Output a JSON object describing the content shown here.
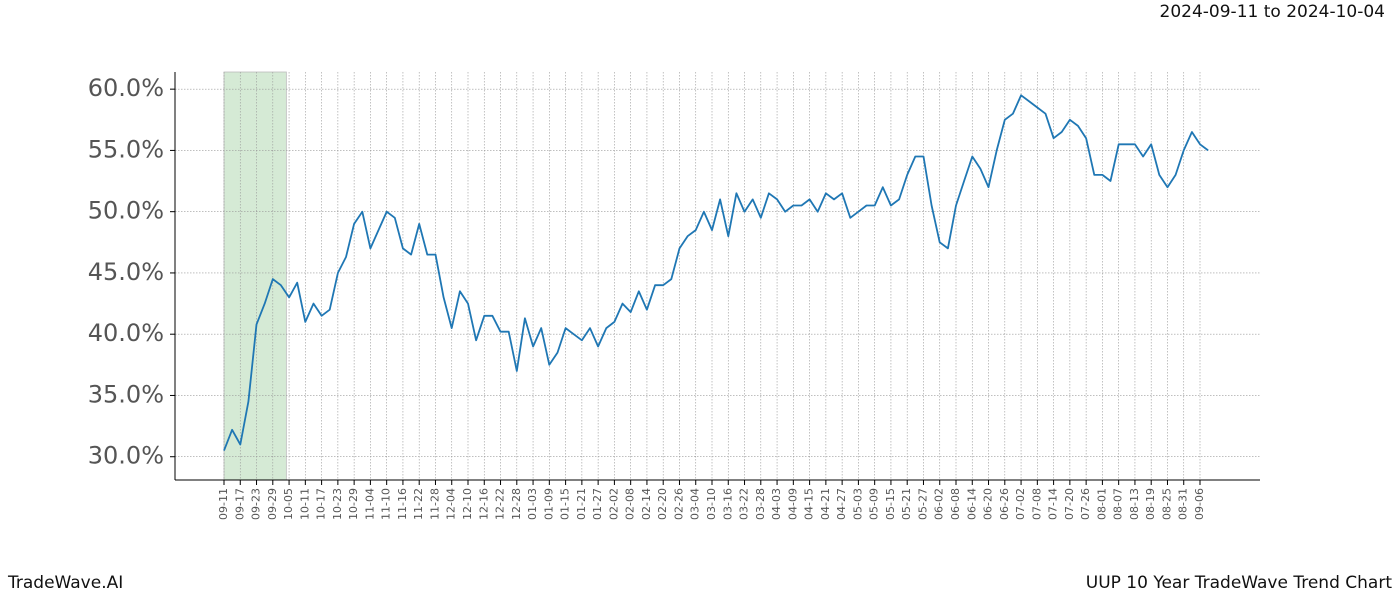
{
  "chart_data": {
    "type": "line",
    "subtitle": "2024-09-11 to 2024-10-04",
    "footer_left": "TradeWave.AI",
    "footer_right": "UUP 10 Year TradeWave Trend Chart",
    "highlight_range": [
      "09-11",
      "10-04"
    ],
    "highlight_color": "#d5ead5",
    "grid": true,
    "x": [
      "09-11",
      "09-14",
      "09-17",
      "09-20",
      "09-23",
      "09-26",
      "09-29",
      "10-02",
      "10-05",
      "10-08",
      "10-11",
      "10-14",
      "10-17",
      "10-20",
      "10-23",
      "10-26",
      "10-29",
      "11-01",
      "11-04",
      "11-07",
      "11-10",
      "11-13",
      "11-16",
      "11-19",
      "11-22",
      "11-25",
      "11-28",
      "12-01",
      "12-04",
      "12-07",
      "12-10",
      "12-13",
      "12-16",
      "12-19",
      "12-22",
      "12-25",
      "12-28",
      "12-31",
      "01-03",
      "01-06",
      "01-09",
      "01-12",
      "01-15",
      "01-18",
      "01-21",
      "01-24",
      "01-27",
      "01-30",
      "02-02",
      "02-05",
      "02-08",
      "02-11",
      "02-14",
      "02-17",
      "02-20",
      "02-23",
      "02-26",
      "03-01",
      "03-04",
      "03-07",
      "03-10",
      "03-13",
      "03-16",
      "03-19",
      "03-22",
      "03-25",
      "03-28",
      "03-31",
      "04-03",
      "04-06",
      "04-09",
      "04-12",
      "04-15",
      "04-18",
      "04-21",
      "04-24",
      "04-27",
      "04-30",
      "05-03",
      "05-06",
      "05-09",
      "05-12",
      "05-15",
      "05-18",
      "05-21",
      "05-24",
      "05-27",
      "05-30",
      "06-02",
      "06-05",
      "06-08",
      "06-11",
      "06-14",
      "06-17",
      "06-20",
      "06-23",
      "06-26",
      "06-29",
      "07-02",
      "07-05",
      "07-08",
      "07-11",
      "07-14",
      "07-17",
      "07-20",
      "07-23",
      "07-26",
      "07-29",
      "08-01",
      "08-04",
      "08-07",
      "08-10",
      "08-13",
      "08-16",
      "08-19",
      "08-22",
      "08-25",
      "08-28",
      "08-31",
      "09-03",
      "09-06",
      "09-09"
    ],
    "series": [
      {
        "name": "UUP",
        "color": "#1f77b4",
        "values": [
          30.5,
          32.2,
          31.0,
          34.5,
          40.8,
          42.5,
          44.5,
          44.0,
          43.0,
          44.2,
          41.0,
          42.5,
          41.5,
          42.0,
          45.0,
          46.3,
          49.0,
          50.0,
          47.0,
          48.5,
          50.0,
          49.5,
          47.0,
          46.5,
          49.0,
          46.5,
          46.5,
          43.0,
          40.5,
          43.5,
          42.5,
          39.5,
          41.5,
          41.5,
          40.2,
          40.2,
          37.0,
          41.3,
          39.0,
          40.5,
          37.5,
          38.5,
          40.5,
          40.0,
          39.5,
          40.5,
          39.0,
          40.5,
          41.0,
          42.5,
          41.8,
          43.5,
          42.0,
          44.0,
          44.0,
          44.5,
          47.0,
          48.0,
          48.5,
          50.0,
          48.5,
          51.0,
          48.0,
          51.5,
          50.0,
          51.0,
          49.5,
          51.5,
          51.0,
          50.0,
          50.5,
          50.5,
          51.0,
          50.0,
          51.5,
          51.0,
          51.5,
          49.5,
          50.0,
          50.5,
          50.5,
          52.0,
          50.5,
          51.0,
          53.0,
          54.5,
          54.5,
          50.5,
          47.5,
          47.0,
          50.5,
          52.5,
          54.5,
          53.5,
          52.0,
          55.0,
          57.5,
          58.0,
          59.5,
          59.0,
          58.5,
          58.0,
          56.0,
          56.5,
          57.5,
          57.0,
          56.0,
          53.0,
          53.0,
          52.5,
          55.5,
          55.5,
          55.5,
          54.5,
          55.5,
          53.0,
          52.0,
          53.0,
          55.0,
          56.5,
          55.5,
          55.0
        ]
      }
    ],
    "xticks": [
      "09-11",
      "09-17",
      "09-23",
      "09-29",
      "10-05",
      "10-11",
      "10-17",
      "10-23",
      "10-29",
      "11-04",
      "11-10",
      "11-16",
      "11-22",
      "11-28",
      "12-04",
      "12-10",
      "12-16",
      "12-22",
      "12-28",
      "01-03",
      "01-09",
      "01-15",
      "01-21",
      "01-27",
      "02-02",
      "02-08",
      "02-14",
      "02-20",
      "02-26",
      "03-04",
      "03-10",
      "03-16",
      "03-22",
      "03-28",
      "04-03",
      "04-09",
      "04-15",
      "04-21",
      "04-27",
      "05-03",
      "05-09",
      "05-15",
      "05-21",
      "05-27",
      "06-02",
      "06-08",
      "06-14",
      "06-20",
      "06-26",
      "07-02",
      "07-08",
      "07-14",
      "07-20",
      "07-26",
      "08-01",
      "08-07",
      "08-13",
      "08-19",
      "08-25",
      "08-31",
      "09-06"
    ],
    "ylim": [
      28.1,
      61.4
    ],
    "yticks": [
      {
        "value": 30,
        "label": "30.0%"
      },
      {
        "value": 35,
        "label": "35.0%"
      },
      {
        "value": 40,
        "label": "40.0%"
      },
      {
        "value": 45,
        "label": "45.0%"
      },
      {
        "value": 50,
        "label": "50.0%"
      },
      {
        "value": 55,
        "label": "55.0%"
      },
      {
        "value": 60,
        "label": "60.0%"
      }
    ]
  }
}
